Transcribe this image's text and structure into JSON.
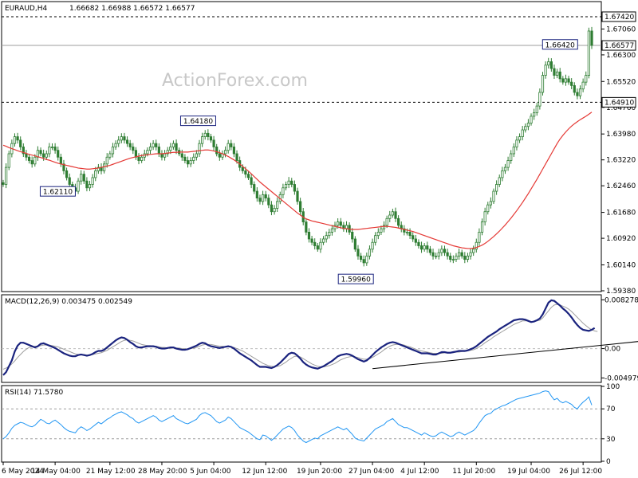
{
  "header": {
    "symbol_tf": "EURAUD,H4",
    "ohlc": "1.66682 1.66988 1.66572 1.66577"
  },
  "watermark": "ActionForex.com",
  "colors": {
    "candle": "#2e7d32",
    "ma": "#e53935",
    "macd": "#1a237e",
    "signal": "#9e9e9e",
    "rsi": "#2196f3",
    "trend": "#000000"
  },
  "chart_data": [
    {
      "type": "candlestick",
      "ylim": [
        1.5938,
        1.6784
      ],
      "y_ticks": [
        "1.67060",
        "1.66300",
        "1.65520",
        "1.64760",
        "1.63980",
        "1.63220",
        "1.62460",
        "1.61680",
        "1.60920",
        "1.60140",
        "1.59380"
      ],
      "x_ticks": [
        "6 May 2024",
        "14 May 04:00",
        "21 May 12:00",
        "28 May 20:00",
        "5 Jun 04:00",
        "12 Jun 12:00",
        "19 Jun 20:00",
        "27 Jun 04:00",
        "4 Jul 12:00",
        "11 Jul 20:00",
        "19 Jul 04:00",
        "26 Jul 12:00"
      ],
      "levels": [
        {
          "label": "1.67420",
          "value": 1.6742,
          "style": "dashed"
        },
        {
          "label": "1.66577",
          "value": 1.66577,
          "style": "solid-grey"
        },
        {
          "label": "1.64910",
          "value": 1.6491,
          "style": "dashed"
        }
      ],
      "annotations": [
        {
          "label": "1.62110",
          "value": 1.6211,
          "index": 25
        },
        {
          "label": "1.64180",
          "value": 1.6418,
          "index": 72
        },
        {
          "label": "1.59960",
          "value": 1.5996,
          "index": 125
        },
        {
          "label": "1.66420",
          "value": 1.6642,
          "index": 198
        }
      ],
      "close": [
        1.625,
        1.63,
        1.634,
        1.637,
        1.639,
        1.638,
        1.636,
        1.634,
        1.633,
        1.632,
        1.631,
        1.633,
        1.635,
        1.634,
        1.633,
        1.634,
        1.636,
        1.636,
        1.635,
        1.633,
        1.631,
        1.629,
        1.627,
        1.625,
        1.624,
        1.623,
        1.626,
        1.628,
        1.626,
        1.624,
        1.625,
        1.627,
        1.629,
        1.63,
        1.629,
        1.631,
        1.633,
        1.634,
        1.636,
        1.637,
        1.638,
        1.639,
        1.638,
        1.637,
        1.636,
        1.635,
        1.633,
        1.632,
        1.633,
        1.634,
        1.635,
        1.636,
        1.637,
        1.636,
        1.634,
        1.633,
        1.634,
        1.635,
        1.636,
        1.637,
        1.635,
        1.634,
        1.633,
        1.632,
        1.631,
        1.632,
        1.633,
        1.634,
        1.637,
        1.639,
        1.64,
        1.639,
        1.638,
        1.636,
        1.634,
        1.633,
        1.634,
        1.635,
        1.637,
        1.636,
        1.634,
        1.632,
        1.63,
        1.629,
        1.628,
        1.627,
        1.625,
        1.623,
        1.621,
        1.62,
        1.622,
        1.621,
        1.619,
        1.617,
        1.618,
        1.62,
        1.622,
        1.624,
        1.625,
        1.626,
        1.625,
        1.623,
        1.62,
        1.617,
        1.614,
        1.611,
        1.609,
        1.608,
        1.607,
        1.606,
        1.608,
        1.609,
        1.61,
        1.611,
        1.612,
        1.613,
        1.614,
        1.613,
        1.612,
        1.613,
        1.611,
        1.609,
        1.606,
        1.604,
        1.603,
        1.602,
        1.604,
        1.606,
        1.608,
        1.61,
        1.611,
        1.612,
        1.613,
        1.615,
        1.616,
        1.617,
        1.615,
        1.613,
        1.612,
        1.611,
        1.611,
        1.61,
        1.609,
        1.608,
        1.607,
        1.606,
        1.607,
        1.606,
        1.605,
        1.604,
        1.604,
        1.605,
        1.606,
        1.605,
        1.604,
        1.603,
        1.603,
        1.604,
        1.605,
        1.604,
        1.603,
        1.604,
        1.605,
        1.606,
        1.608,
        1.611,
        1.614,
        1.617,
        1.619,
        1.62,
        1.623,
        1.625,
        1.627,
        1.629,
        1.63,
        1.632,
        1.634,
        1.636,
        1.638,
        1.639,
        1.641,
        1.642,
        1.643,
        1.645,
        1.646,
        1.648,
        1.652,
        1.657,
        1.66,
        1.661,
        1.659,
        1.657,
        1.658,
        1.656,
        1.655,
        1.656,
        1.655,
        1.654,
        1.652,
        1.651,
        1.653,
        1.655,
        1.657,
        1.67,
        1.6658
      ],
      "ma": [
        1.6365,
        1.6362,
        1.6358,
        1.6355,
        1.6352,
        1.6349,
        1.6346,
        1.6344,
        1.6341,
        1.6338,
        1.6336,
        1.6334,
        1.6331,
        1.6329,
        1.6326,
        1.6323,
        1.6321,
        1.6318,
        1.6315,
        1.6312,
        1.631,
        1.6308,
        1.6306,
        1.6304,
        1.6302,
        1.63,
        1.6298,
        1.6297,
        1.6296,
        1.6295,
        1.6295,
        1.6296,
        1.6297,
        1.6298,
        1.63,
        1.6302,
        1.6304,
        1.6306,
        1.6309,
        1.6312,
        1.6315,
        1.6318,
        1.6321,
        1.6324,
        1.6327,
        1.6329,
        1.6331,
        1.6333,
        1.6335,
        1.6336,
        1.6337,
        1.6338,
        1.6339,
        1.634,
        1.634,
        1.634,
        1.6341,
        1.6342,
        1.6343,
        1.6344,
        1.6344,
        1.6345,
        1.6345,
        1.6345,
        1.6345,
        1.6346,
        1.6347,
        1.6348,
        1.6349,
        1.635,
        1.6351,
        1.6351,
        1.635,
        1.6348,
        1.6346,
        1.6343,
        1.634,
        1.6336,
        1.6332,
        1.6327,
        1.6322,
        1.6316,
        1.631,
        1.6303,
        1.6296,
        1.6289,
        1.6281,
        1.6273,
        1.6265,
        1.6257,
        1.625,
        1.6243,
        1.6236,
        1.6229,
        1.6222,
        1.6215,
        1.6208,
        1.6201,
        1.6194,
        1.6187,
        1.618,
        1.6173,
        1.6166,
        1.616,
        1.6154,
        1.6149,
        1.6146,
        1.6143,
        1.6141,
        1.6139,
        1.6137,
        1.6135,
        1.6133,
        1.6131,
        1.6129,
        1.6127,
        1.6125,
        1.6123,
        1.6121,
        1.612,
        1.6119,
        1.6118,
        1.6118,
        1.6118,
        1.6119,
        1.612,
        1.6121,
        1.6122,
        1.6123,
        1.6124,
        1.6125,
        1.6126,
        1.6127,
        1.6127,
        1.6126,
        1.6125,
        1.6124,
        1.6122,
        1.612,
        1.6118,
        1.6116,
        1.6114,
        1.6112,
        1.6109,
        1.6106,
        1.6103,
        1.61,
        1.6097,
        1.6094,
        1.6091,
        1.6088,
        1.6085,
        1.6082,
        1.6079,
        1.6076,
        1.6073,
        1.607,
        1.6068,
        1.6066,
        1.6064,
        1.6063,
        1.6062,
        1.6062,
        1.6063,
        1.6065,
        1.6068,
        1.6072,
        1.6077,
        1.6083,
        1.609,
        1.6097,
        1.6105,
        1.6113,
        1.6122,
        1.6131,
        1.6141,
        1.6151,
        1.6162,
        1.6173,
        1.6185,
        1.6197,
        1.621,
        1.6223,
        1.6237,
        1.6251,
        1.6265,
        1.628,
        1.6295,
        1.631,
        1.6325,
        1.634,
        1.6355,
        1.637,
        1.6383,
        1.6394,
        1.6404,
        1.6413,
        1.6421,
        1.6428,
        1.6434,
        1.644,
        1.6445,
        1.645,
        1.6456,
        1.6462
      ]
    },
    {
      "type": "line",
      "title": "MACD(12,26,9) 0.003475 0.002549",
      "ylim": [
        -0.0056,
        0.009
      ],
      "y_ticks": [
        "0.008278",
        "0.00",
        "-0.004979"
      ],
      "macd": [
        -0.0045,
        -0.004,
        -0.003,
        -0.002,
        -0.0005,
        0.0005,
        0.001,
        0.001,
        0.0008,
        0.0006,
        0.0004,
        0.0002,
        0.0004,
        0.0008,
        0.0009,
        0.0007,
        0.0005,
        0.0003,
        0.0001,
        -0.0002,
        -0.0005,
        -0.0008,
        -0.001,
        -0.0012,
        -0.0013,
        -0.0013,
        -0.0011,
        -0.001,
        -0.0011,
        -0.0012,
        -0.0011,
        -0.0009,
        -0.0006,
        -0.0004,
        -0.0004,
        -0.0002,
        0.0002,
        0.0006,
        0.001,
        0.0014,
        0.0017,
        0.0019,
        0.0018,
        0.0015,
        0.0011,
        0.0008,
        0.0004,
        0.0002,
        0.0002,
        0.0003,
        0.0004,
        0.0004,
        0.0004,
        0.0003,
        0.0001,
        0.0,
        0.0,
        0.0001,
        0.0002,
        0.0002,
        0.0,
        -0.0001,
        -0.0002,
        -0.0002,
        -0.0001,
        0.0001,
        0.0003,
        0.0005,
        0.0008,
        0.001,
        0.0009,
        0.0006,
        0.0004,
        0.0003,
        0.0002,
        0.0001,
        0.0002,
        0.0003,
        0.0004,
        0.0003,
        0.0,
        -0.0004,
        -0.0008,
        -0.0011,
        -0.0014,
        -0.0017,
        -0.002,
        -0.0024,
        -0.0028,
        -0.0031,
        -0.0031,
        -0.0031,
        -0.0032,
        -0.0033,
        -0.0031,
        -0.0028,
        -0.0024,
        -0.0019,
        -0.0014,
        -0.0009,
        -0.0007,
        -0.0008,
        -0.0012,
        -0.0017,
        -0.0023,
        -0.0027,
        -0.003,
        -0.0032,
        -0.0033,
        -0.0034,
        -0.0032,
        -0.003,
        -0.0027,
        -0.0024,
        -0.0021,
        -0.0017,
        -0.0013,
        -0.0011,
        -0.001,
        -0.0009,
        -0.001,
        -0.0012,
        -0.0015,
        -0.0018,
        -0.002,
        -0.0022,
        -0.002,
        -0.0016,
        -0.0011,
        -0.0006,
        -0.0002,
        0.0002,
        0.0005,
        0.0008,
        0.001,
        0.0011,
        0.001,
        0.0008,
        0.0006,
        0.0004,
        0.0002,
        0.0,
        -0.0002,
        -0.0004,
        -0.0006,
        -0.0008,
        -0.0008,
        -0.0008,
        -0.0009,
        -0.001,
        -0.001,
        -0.0008,
        -0.0006,
        -0.0006,
        -0.0007,
        -0.0007,
        -0.0006,
        -0.0005,
        -0.0004,
        -0.0004,
        -0.0004,
        -0.0003,
        -0.0001,
        0.0001,
        0.0004,
        0.0008,
        0.0012,
        0.0016,
        0.002,
        0.0023,
        0.0026,
        0.0029,
        0.0033,
        0.0036,
        0.0039,
        0.0042,
        0.0045,
        0.0048,
        0.0049,
        0.005,
        0.005,
        0.0049,
        0.0047,
        0.0045,
        0.0046,
        0.0048,
        0.0051,
        0.0058,
        0.0068,
        0.0078,
        0.0082,
        0.0081,
        0.0077,
        0.0073,
        0.0068,
        0.0064,
        0.0059,
        0.0053,
        0.0046,
        0.004,
        0.0035,
        0.0032,
        0.0031,
        0.003,
        0.0032,
        0.0035
      ],
      "signal": [
        -0.0035,
        -0.0033,
        -0.003,
        -0.0026,
        -0.0021,
        -0.0015,
        -0.001,
        -0.0005,
        -0.0001,
        0.0002,
        0.0003,
        0.0004,
        0.0004,
        0.0005,
        0.0006,
        0.0006,
        0.0006,
        0.0005,
        0.0004,
        0.0003,
        0.0001,
        -0.0001,
        -0.0003,
        -0.0005,
        -0.0007,
        -0.0009,
        -0.001,
        -0.001,
        -0.001,
        -0.0011,
        -0.0011,
        -0.001,
        -0.0009,
        -0.0008,
        -0.0007,
        -0.0005,
        -0.0003,
        0.0,
        0.0003,
        0.0006,
        0.0009,
        0.0012,
        0.0014,
        0.0015,
        0.0014,
        0.0013,
        0.0011,
        0.0009,
        0.0007,
        0.0006,
        0.0005,
        0.0005,
        0.0004,
        0.0004,
        0.0003,
        0.0002,
        0.0002,
        0.0001,
        0.0001,
        0.0001,
        0.0001,
        0.0001,
        0.0,
        0.0,
        -0.0001,
        0.0,
        0.0001,
        0.0002,
        0.0004,
        0.0006,
        0.0007,
        0.0007,
        0.0007,
        0.0006,
        0.0005,
        0.0004,
        0.0004,
        0.0003,
        0.0003,
        0.0003,
        0.0002,
        0.0,
        -0.0002,
        -0.0004,
        -0.0007,
        -0.001,
        -0.0013,
        -0.0016,
        -0.0019,
        -0.0022,
        -0.0025,
        -0.0027,
        -0.0029,
        -0.003,
        -0.0031,
        -0.003,
        -0.0029,
        -0.0026,
        -0.0023,
        -0.0019,
        -0.0016,
        -0.0013,
        -0.0013,
        -0.0014,
        -0.0017,
        -0.002,
        -0.0023,
        -0.0026,
        -0.0028,
        -0.003,
        -0.0031,
        -0.0031,
        -0.003,
        -0.0029,
        -0.0027,
        -0.0025,
        -0.0022,
        -0.0019,
        -0.0017,
        -0.0015,
        -0.0014,
        -0.0013,
        -0.0014,
        -0.0015,
        -0.0017,
        -0.0018,
        -0.0018,
        -0.0017,
        -0.0015,
        -0.0012,
        -0.0009,
        -0.0006,
        -0.0002,
        0.0001,
        0.0004,
        0.0006,
        0.0007,
        0.0007,
        0.0007,
        0.0006,
        0.0004,
        0.0003,
        0.0001,
        -0.0001,
        -0.0003,
        -0.0004,
        -0.0005,
        -0.0006,
        -0.0007,
        -0.0008,
        -0.0008,
        -0.0008,
        -0.0008,
        -0.0007,
        -0.0007,
        -0.0007,
        -0.0007,
        -0.0006,
        -0.0006,
        -0.0005,
        -0.0005,
        -0.0004,
        -0.0003,
        -0.0002,
        0.0,
        0.0003,
        0.0006,
        0.001,
        0.0013,
        0.0016,
        0.002,
        0.0023,
        0.0026,
        0.0029,
        0.0032,
        0.0035,
        0.0038,
        0.0041,
        0.0043,
        0.0045,
        0.0047,
        0.0047,
        0.0047,
        0.0046,
        0.0046,
        0.0047,
        0.0048,
        0.0052,
        0.0058,
        0.0064,
        0.007,
        0.0074,
        0.0075,
        0.0074,
        0.0072,
        0.007,
        0.0067,
        0.0063,
        0.0058,
        0.0053,
        0.0048,
        0.0043,
        0.0039,
        0.0035,
        0.0032,
        0.003,
        0.0029
      ],
      "trendline": [
        [
          128,
          -0.0034
        ],
        [
          244,
          0.0024
        ]
      ]
    },
    {
      "type": "line",
      "title": "RSI(14) 71.5780",
      "ylim": [
        0,
        100
      ],
      "y_ticks": [
        "100",
        "70",
        "30",
        "0"
      ],
      "reference_levels": [
        70,
        30
      ],
      "rsi": [
        30,
        33,
        38,
        44,
        48,
        50,
        52,
        51,
        49,
        47,
        46,
        48,
        52,
        56,
        54,
        51,
        50,
        53,
        55,
        52,
        49,
        45,
        42,
        40,
        39,
        38,
        43,
        46,
        44,
        41,
        43,
        46,
        49,
        52,
        50,
        53,
        56,
        58,
        61,
        63,
        65,
        66,
        64,
        62,
        59,
        57,
        53,
        51,
        53,
        55,
        57,
        59,
        61,
        59,
        55,
        53,
        55,
        57,
        59,
        61,
        57,
        55,
        53,
        51,
        50,
        52,
        54,
        56,
        61,
        64,
        65,
        63,
        61,
        57,
        53,
        51,
        53,
        55,
        59,
        57,
        53,
        49,
        45,
        43,
        41,
        39,
        36,
        33,
        30,
        29,
        35,
        34,
        31,
        28,
        31,
        35,
        39,
        43,
        45,
        47,
        45,
        41,
        35,
        31,
        27,
        25,
        27,
        29,
        31,
        30,
        34,
        36,
        38,
        40,
        42,
        44,
        46,
        44,
        42,
        44,
        40,
        36,
        31,
        29,
        28,
        27,
        31,
        35,
        39,
        43,
        45,
        47,
        49,
        53,
        55,
        57,
        53,
        49,
        47,
        45,
        45,
        43,
        41,
        39,
        37,
        35,
        38,
        36,
        34,
        33,
        34,
        37,
        39,
        37,
        35,
        33,
        34,
        37,
        39,
        37,
        35,
        37,
        39,
        41,
        45,
        51,
        56,
        61,
        63,
        64,
        68,
        70,
        72,
        74,
        75,
        77,
        79,
        81,
        83,
        84,
        85,
        86,
        87,
        88,
        89,
        90,
        91,
        93,
        94,
        93,
        87,
        82,
        84,
        80,
        78,
        80,
        78,
        76,
        72,
        70,
        75,
        79,
        82,
        86,
        75
      ],
      "overbought_level": 70,
      "oversold_level": 30
    }
  ]
}
